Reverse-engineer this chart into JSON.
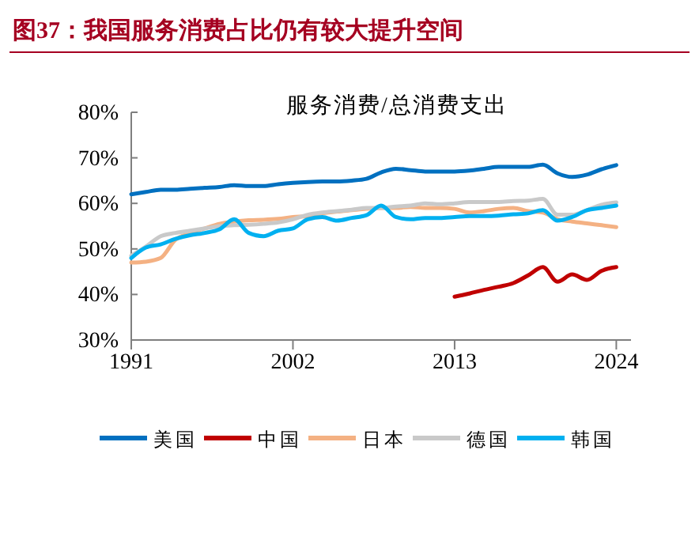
{
  "chart_data": {
    "type": "line",
    "title": "图37：我国服务消费占比仍有较大提升空间",
    "subtitle": "服务消费/总消费支出",
    "xlim": [
      1991,
      2025
    ],
    "xticks": [
      1991,
      2002,
      2013,
      2024
    ],
    "ylim": [
      30,
      80
    ],
    "yticks": [
      {
        "value": 30,
        "label": "30%"
      },
      {
        "value": 40,
        "label": "40%"
      },
      {
        "value": 50,
        "label": "50%"
      },
      {
        "value": 60,
        "label": "60%"
      },
      {
        "value": 70,
        "label": "70%"
      },
      {
        "value": 80,
        "label": "80%"
      }
    ],
    "grid": false,
    "legend": "bottom",
    "marker": "none",
    "line_style": "solid",
    "x": [
      1991,
      1992,
      1993,
      1994,
      1995,
      1996,
      1997,
      1998,
      1999,
      2000,
      2001,
      2002,
      2003,
      2004,
      2005,
      2006,
      2007,
      2008,
      2009,
      2010,
      2011,
      2012,
      2013,
      2014,
      2015,
      2016,
      2017,
      2018,
      2019,
      2020,
      2021,
      2022,
      2023,
      2024
    ],
    "series": [
      {
        "name": "美国",
        "color": "#0070c0",
        "values": [
          62,
          62.5,
          63,
          63,
          63.2,
          63.4,
          63.6,
          64,
          63.8,
          63.8,
          64.2,
          64.5,
          64.7,
          64.8,
          64.8,
          65,
          65.4,
          66.8,
          67.6,
          67.3,
          67,
          67,
          67,
          67.2,
          67.6,
          68,
          68,
          68,
          68.5,
          66.6,
          65.8,
          66.3,
          67.5,
          68.4
        ]
      },
      {
        "name": "中国",
        "color": "#c00000",
        "x": [
          2013,
          2014,
          2015,
          2016,
          2017,
          2018,
          2019,
          2020,
          2021,
          2022,
          2023,
          2024
        ],
        "values": [
          39.5,
          40.2,
          41,
          41.7,
          42.5,
          44.2,
          46,
          42.8,
          44.4,
          43.2,
          45.2,
          46
        ]
      },
      {
        "name": "日本",
        "color": "#f4b183",
        "values": [
          47,
          47.2,
          48,
          52,
          53.5,
          54.5,
          55.5,
          56,
          56.3,
          56.4,
          56.6,
          57,
          57.2,
          57.8,
          58.2,
          58.5,
          58.8,
          59,
          59,
          59.2,
          59,
          59,
          58.8,
          58,
          58.3,
          58.8,
          59,
          58.3,
          58,
          56.5,
          56,
          55.6,
          55.2,
          54.8
        ]
      },
      {
        "name": "德国",
        "color": "#c9c9c9",
        "values": [
          48.5,
          50.5,
          52.8,
          53.5,
          54,
          54.5,
          55,
          55.2,
          55.3,
          55.5,
          55.8,
          56.5,
          57.5,
          58,
          58.3,
          58.6,
          59,
          59,
          59.3,
          59.5,
          60,
          59.8,
          60,
          60.3,
          60.3,
          60.3,
          60.5,
          60.6,
          61,
          57.5,
          57.5,
          58.5,
          59.7,
          60.2
        ]
      },
      {
        "name": "韩国",
        "color": "#00b0f0",
        "values": [
          48,
          50.3,
          51,
          52.2,
          53,
          53.5,
          54.3,
          56.5,
          53.5,
          52.8,
          54,
          54.5,
          56.5,
          57,
          56.2,
          56.8,
          57.4,
          59.5,
          57,
          56.5,
          56.8,
          56.8,
          57,
          57.2,
          57.2,
          57.3,
          57.6,
          57.8,
          58.5,
          56.2,
          57,
          58.5,
          59,
          59.5
        ]
      }
    ]
  }
}
